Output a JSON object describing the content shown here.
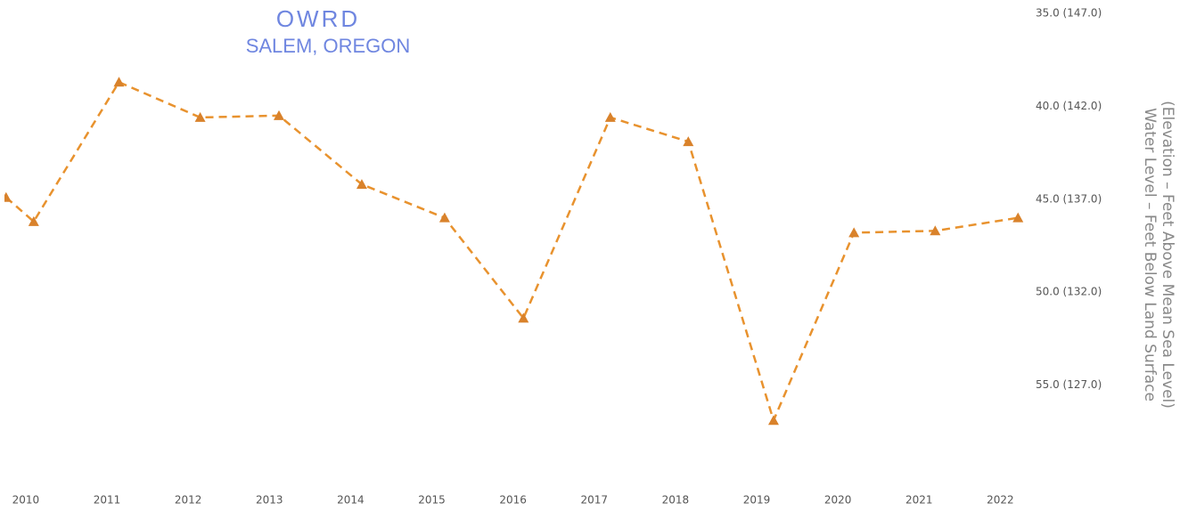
{
  "chart_data": {
    "type": "line",
    "stamp": [
      "OWRD",
      "SALEM, OREGON"
    ],
    "y_label": [
      "Water Level – Feet Below Land Surface",
      "(Elevation – Feet Above Mean Sea Level)"
    ],
    "x": [
      2009.78,
      2010.12,
      2011.17,
      2012.17,
      2013.14,
      2014.16,
      2015.18,
      2016.15,
      2017.22,
      2018.18,
      2019.23,
      2020.22,
      2021.22,
      2022.24
    ],
    "series": [
      {
        "color": "#e8922e",
        "values": [
          44.9,
          46.2,
          38.7,
          40.6,
          40.5,
          44.2,
          46.0,
          51.4,
          40.6,
          41.9,
          56.9,
          46.8,
          46.7,
          46.0
        ]
      }
    ],
    "xlim": [
      2009.76,
      2022.27
    ],
    "xticks": [
      2010,
      2011,
      2012,
      2013,
      2014,
      2015,
      2016,
      2017,
      2018,
      2019,
      2020,
      2021,
      2022
    ],
    "ylim": [
      35,
      60
    ],
    "y_inverted": true,
    "yticks": [
      {
        "value": 35,
        "label": "35.0 (147.0)"
      },
      {
        "value": 40,
        "label": "40.0 (142.0)"
      },
      {
        "value": 45,
        "label": "45.0 (137.0)"
      },
      {
        "value": 50,
        "label": "50.0 (132.0)"
      },
      {
        "value": 55,
        "label": "55.0 (127.0)"
      }
    ],
    "line_style": "dashed",
    "marker": "triangle",
    "marker_color": "#d9822b",
    "grid": false
  }
}
